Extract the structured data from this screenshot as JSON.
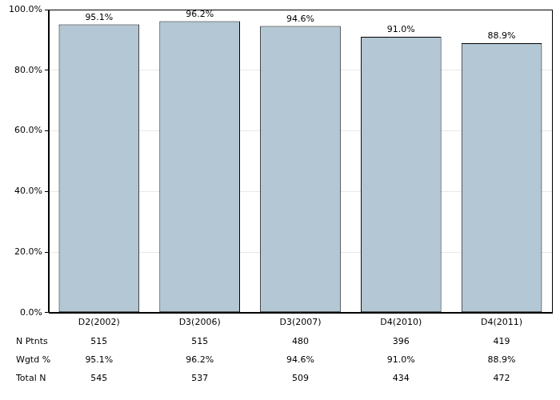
{
  "chart_data": {
    "type": "bar",
    "categories": [
      "D2(2002)",
      "D3(2006)",
      "D3(2007)",
      "D4(2010)",
      "D4(2011)"
    ],
    "values": [
      95.1,
      96.2,
      94.6,
      91.0,
      88.9
    ],
    "value_labels": [
      "95.1%",
      "96.2%",
      "94.6%",
      "91.0%",
      "88.9%"
    ],
    "data_labels": true,
    "color": "#b3c7d4",
    "ylim": [
      0,
      100
    ],
    "yticks": [
      {
        "value": 0,
        "label": "0.0%"
      },
      {
        "value": 20,
        "label": "20.0%"
      },
      {
        "value": 40,
        "label": "40.0%"
      },
      {
        "value": 60,
        "label": "60.0%"
      },
      {
        "value": 80,
        "label": "80.0%"
      },
      {
        "value": 100,
        "label": "100.0%"
      }
    ],
    "grid": true
  },
  "table": {
    "rows": [
      [
        "N Ptnts",
        515,
        515,
        480,
        396,
        419
      ],
      [
        "Wgtd %",
        "95.1%",
        "96.2%",
        "94.6%",
        "91.0%",
        "88.9%"
      ],
      [
        "Total N",
        545,
        537,
        509,
        434,
        472
      ]
    ]
  }
}
